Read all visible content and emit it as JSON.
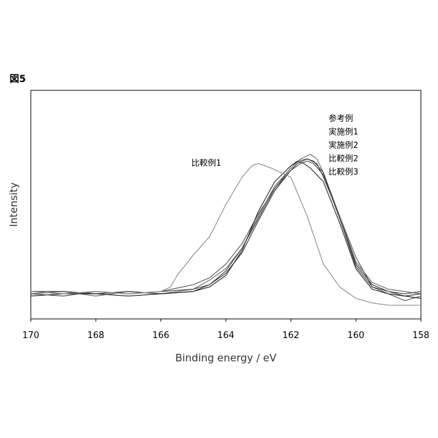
{
  "figure_label": "図5",
  "chart_data": {
    "type": "line",
    "title": "",
    "xlabel": "Binding energy / eV",
    "ylabel": "Intensity",
    "xlim": [
      170,
      158
    ],
    "ylim": [
      0,
      1
    ],
    "x_reversed": true,
    "xticks": [
      170,
      168,
      166,
      164,
      162,
      160,
      158
    ],
    "show_y_ticks": false,
    "grid": false,
    "legend_position": "top-right",
    "legend_entries": [
      "参考例",
      "実施例1",
      "実施例2",
      "比較例2",
      "比較例3"
    ],
    "annotations": [
      {
        "text": "比較例1",
        "x": 164.6,
        "y": 0.67
      }
    ],
    "series": [
      {
        "name": "参考例",
        "color": "#555555",
        "x": [
          170,
          169,
          168,
          167,
          166,
          165,
          164.5,
          164,
          163.5,
          163,
          162.5,
          162,
          161.8,
          161.5,
          161.2,
          161,
          160.5,
          160,
          159.5,
          159,
          158.5,
          158
        ],
        "y": [
          0.12,
          0.11,
          0.12,
          0.11,
          0.12,
          0.15,
          0.18,
          0.24,
          0.33,
          0.46,
          0.57,
          0.66,
          0.69,
          0.7,
          0.68,
          0.62,
          0.45,
          0.27,
          0.14,
          0.11,
          0.08,
          0.1
        ]
      },
      {
        "name": "実施例1",
        "color": "#666666",
        "x": [
          170,
          169,
          168,
          167,
          166,
          165,
          164.5,
          164,
          163.5,
          163,
          162.5,
          162,
          161.7,
          161.4,
          161.2,
          161,
          160.5,
          160,
          159.5,
          159,
          158.5,
          158
        ],
        "y": [
          0.11,
          0.12,
          0.1,
          0.12,
          0.11,
          0.13,
          0.17,
          0.22,
          0.31,
          0.45,
          0.58,
          0.66,
          0.7,
          0.72,
          0.7,
          0.64,
          0.45,
          0.25,
          0.16,
          0.13,
          0.12,
          0.11
        ]
      },
      {
        "name": "実施例2",
        "color": "#333333",
        "x": [
          170,
          169,
          168,
          167,
          166,
          165,
          164.5,
          164,
          163.5,
          163,
          162.5,
          162,
          161.8,
          161.5,
          161.3,
          161,
          160.5,
          160,
          159.5,
          159,
          158.5,
          158
        ],
        "y": [
          0.12,
          0.12,
          0.11,
          0.12,
          0.11,
          0.12,
          0.15,
          0.2,
          0.29,
          0.43,
          0.56,
          0.65,
          0.68,
          0.7,
          0.69,
          0.64,
          0.44,
          0.24,
          0.15,
          0.12,
          0.1,
          0.11
        ]
      },
      {
        "name": "比較例2",
        "color": "#222222",
        "x": [
          170,
          169,
          168,
          167,
          166,
          165,
          164.5,
          164,
          163.5,
          163,
          162.5,
          162,
          161.8,
          161.6,
          161.4,
          161,
          160.5,
          160,
          159.5,
          159,
          158.5,
          158
        ],
        "y": [
          0.1,
          0.11,
          0.11,
          0.1,
          0.11,
          0.12,
          0.14,
          0.19,
          0.3,
          0.47,
          0.6,
          0.67,
          0.69,
          0.68,
          0.66,
          0.6,
          0.42,
          0.22,
          0.13,
          0.11,
          0.1,
          0.09
        ]
      },
      {
        "name": "比較例3",
        "color": "#444444",
        "x": [
          170,
          169,
          168,
          167,
          166,
          165,
          164.5,
          164,
          163.5,
          163,
          162.5,
          162,
          161.7,
          161.5,
          161.3,
          161,
          160.5,
          160,
          159.5,
          159,
          158.5,
          158
        ],
        "y": [
          0.11,
          0.1,
          0.12,
          0.11,
          0.12,
          0.13,
          0.15,
          0.21,
          0.31,
          0.44,
          0.57,
          0.65,
          0.68,
          0.69,
          0.68,
          0.63,
          0.44,
          0.23,
          0.14,
          0.12,
          0.11,
          0.12
        ]
      },
      {
        "name": "比較例1",
        "color": "#888888",
        "x": [
          170,
          169,
          168,
          167,
          166,
          165.7,
          165.5,
          165,
          164.5,
          164,
          163.5,
          163.2,
          163,
          162.6,
          162.3,
          162,
          161.5,
          161,
          160.5,
          160,
          159.5,
          159,
          158.5,
          158
        ],
        "y": [
          0.12,
          0.11,
          0.12,
          0.11,
          0.12,
          0.14,
          0.19,
          0.28,
          0.36,
          0.5,
          0.62,
          0.67,
          0.68,
          0.66,
          0.64,
          0.62,
          0.45,
          0.24,
          0.14,
          0.09,
          0.07,
          0.06,
          0.06,
          0.06
        ]
      }
    ]
  }
}
